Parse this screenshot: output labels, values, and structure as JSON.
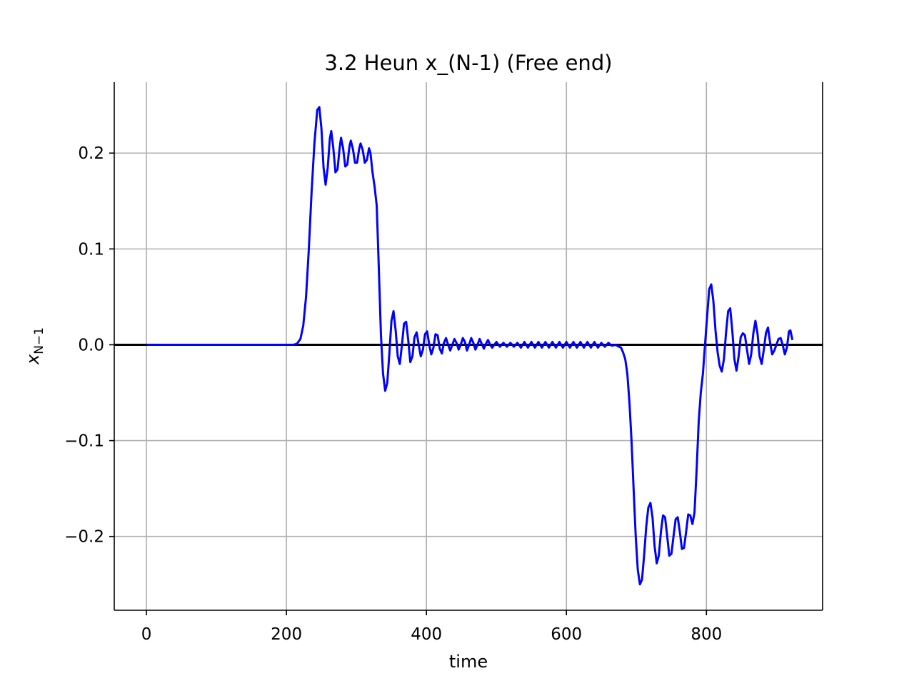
{
  "chart_data": {
    "type": "line",
    "title": "3.2 Heun x_(N-1) (Free end)",
    "xlabel": "time",
    "ylabel": "x",
    "ylabel_subscript": "N−1",
    "xlim": [
      -46,
      966
    ],
    "ylim": [
      -0.277,
      0.274
    ],
    "xticks": [
      0,
      200,
      400,
      600,
      800
    ],
    "xtick_labels": [
      "0",
      "200",
      "400",
      "600",
      "800"
    ],
    "yticks": [
      -0.2,
      -0.1,
      0.0,
      0.1,
      0.2
    ],
    "ytick_labels": [
      "−0.2",
      "−0.1",
      "0.0",
      "0.1",
      "0.2"
    ],
    "grid": true,
    "reference_line": {
      "y": 0.0,
      "color": "#000000"
    },
    "series": [
      {
        "color": "#0000ff",
        "points": [
          [
            0,
            0.0
          ],
          [
            50,
            0.0
          ],
          [
            100,
            0.0
          ],
          [
            150,
            0.0
          ],
          [
            200,
            0.0
          ],
          [
            210,
            0.0
          ],
          [
            215,
            0.001
          ],
          [
            220,
            0.006
          ],
          [
            224,
            0.02
          ],
          [
            228,
            0.05
          ],
          [
            232,
            0.1
          ],
          [
            236,
            0.16
          ],
          [
            240,
            0.21
          ],
          [
            244,
            0.245
          ],
          [
            247,
            0.248
          ],
          [
            250,
            0.225
          ],
          [
            253,
            0.185
          ],
          [
            256,
            0.167
          ],
          [
            259,
            0.185
          ],
          [
            262,
            0.215
          ],
          [
            264,
            0.223
          ],
          [
            267,
            0.205
          ],
          [
            270,
            0.18
          ],
          [
            273,
            0.183
          ],
          [
            276,
            0.205
          ],
          [
            278,
            0.216
          ],
          [
            281,
            0.205
          ],
          [
            284,
            0.186
          ],
          [
            287,
            0.188
          ],
          [
            290,
            0.207
          ],
          [
            292,
            0.213
          ],
          [
            295,
            0.204
          ],
          [
            298,
            0.19
          ],
          [
            301,
            0.19
          ],
          [
            304,
            0.205
          ],
          [
            306,
            0.21
          ],
          [
            309,
            0.203
          ],
          [
            312,
            0.19
          ],
          [
            315,
            0.193
          ],
          [
            318,
            0.205
          ],
          [
            320,
            0.2
          ],
          [
            323,
            0.18
          ],
          [
            326,
            0.165
          ],
          [
            329,
            0.145
          ],
          [
            332,
            0.08
          ],
          [
            335,
            0.01
          ],
          [
            338,
            -0.03
          ],
          [
            341,
            -0.048
          ],
          [
            344,
            -0.04
          ],
          [
            347,
            -0.01
          ],
          [
            350,
            0.025
          ],
          [
            353,
            0.035
          ],
          [
            356,
            0.015
          ],
          [
            359,
            -0.012
          ],
          [
            362,
            -0.02
          ],
          [
            365,
            0.0
          ],
          [
            368,
            0.022
          ],
          [
            371,
            0.024
          ],
          [
            374,
            0.005
          ],
          [
            377,
            -0.018
          ],
          [
            380,
            -0.012
          ],
          [
            383,
            0.008
          ],
          [
            386,
            0.013
          ],
          [
            389,
            0.0
          ],
          [
            392,
            -0.012
          ],
          [
            395,
            -0.005
          ],
          [
            398,
            0.011
          ],
          [
            401,
            0.014
          ],
          [
            404,
            0.0
          ],
          [
            407,
            -0.01
          ],
          [
            410,
            -0.003
          ],
          [
            413,
            0.011
          ],
          [
            416,
            0.01
          ],
          [
            419,
            -0.004
          ],
          [
            422,
            -0.009
          ],
          [
            425,
            0.002
          ],
          [
            428,
            0.007
          ],
          [
            431,
            0.0
          ],
          [
            434,
            -0.006
          ],
          [
            437,
            0.0
          ],
          [
            440,
            0.006
          ],
          [
            443,
            0.002
          ],
          [
            446,
            -0.005
          ],
          [
            449,
            0.0
          ],
          [
            452,
            0.007
          ],
          [
            455,
            0.003
          ],
          [
            458,
            -0.006
          ],
          [
            461,
            0.0
          ],
          [
            464,
            0.007
          ],
          [
            467,
            0.002
          ],
          [
            470,
            -0.005
          ],
          [
            473,
            0.0
          ],
          [
            476,
            0.006
          ],
          [
            479,
            0.001
          ],
          [
            482,
            -0.004
          ],
          [
            485,
            0.001
          ],
          [
            488,
            0.005
          ],
          [
            491,
            0.0
          ],
          [
            494,
            -0.003
          ],
          [
            497,
            0.0
          ],
          [
            500,
            0.003
          ],
          [
            505,
            -0.002
          ],
          [
            510,
            0.002
          ],
          [
            515,
            -0.002
          ],
          [
            520,
            0.002
          ],
          [
            525,
            -0.002
          ],
          [
            530,
            0.002
          ],
          [
            535,
            -0.003
          ],
          [
            540,
            0.003
          ],
          [
            545,
            -0.003
          ],
          [
            550,
            0.003
          ],
          [
            555,
            -0.003
          ],
          [
            560,
            0.003
          ],
          [
            565,
            -0.003
          ],
          [
            570,
            0.003
          ],
          [
            575,
            -0.003
          ],
          [
            580,
            0.003
          ],
          [
            585,
            -0.003
          ],
          [
            590,
            0.003
          ],
          [
            595,
            -0.003
          ],
          [
            600,
            0.003
          ],
          [
            605,
            -0.003
          ],
          [
            610,
            0.003
          ],
          [
            615,
            -0.003
          ],
          [
            620,
            0.003
          ],
          [
            625,
            -0.003
          ],
          [
            630,
            0.003
          ],
          [
            635,
            -0.003
          ],
          [
            640,
            0.003
          ],
          [
            645,
            -0.003
          ],
          [
            650,
            0.002
          ],
          [
            655,
            -0.002
          ],
          [
            660,
            0.002
          ],
          [
            665,
            -0.001
          ],
          [
            670,
            0.0
          ],
          [
            675,
            -0.002
          ],
          [
            678,
            -0.003
          ],
          [
            681,
            -0.008
          ],
          [
            684,
            -0.015
          ],
          [
            687,
            -0.03
          ],
          [
            690,
            -0.06
          ],
          [
            693,
            -0.1
          ],
          [
            696,
            -0.15
          ],
          [
            699,
            -0.2
          ],
          [
            702,
            -0.235
          ],
          [
            705,
            -0.25
          ],
          [
            708,
            -0.245
          ],
          [
            711,
            -0.22
          ],
          [
            714,
            -0.19
          ],
          [
            717,
            -0.17
          ],
          [
            720,
            -0.165
          ],
          [
            723,
            -0.18
          ],
          [
            726,
            -0.21
          ],
          [
            729,
            -0.228
          ],
          [
            732,
            -0.22
          ],
          [
            735,
            -0.195
          ],
          [
            738,
            -0.178
          ],
          [
            741,
            -0.18
          ],
          [
            744,
            -0.2
          ],
          [
            747,
            -0.22
          ],
          [
            750,
            -0.218
          ],
          [
            753,
            -0.2
          ],
          [
            756,
            -0.182
          ],
          [
            759,
            -0.18
          ],
          [
            762,
            -0.195
          ],
          [
            765,
            -0.213
          ],
          [
            768,
            -0.212
          ],
          [
            771,
            -0.195
          ],
          [
            774,
            -0.177
          ],
          [
            777,
            -0.178
          ],
          [
            780,
            -0.187
          ],
          [
            783,
            -0.175
          ],
          [
            786,
            -0.13
          ],
          [
            789,
            -0.08
          ],
          [
            792,
            -0.05
          ],
          [
            795,
            -0.03
          ],
          [
            798,
            0.0
          ],
          [
            801,
            0.03
          ],
          [
            804,
            0.058
          ],
          [
            807,
            0.063
          ],
          [
            810,
            0.045
          ],
          [
            813,
            0.015
          ],
          [
            816,
            -0.008
          ],
          [
            819,
            -0.022
          ],
          [
            822,
            -0.028
          ],
          [
            825,
            -0.015
          ],
          [
            828,
            0.012
          ],
          [
            831,
            0.035
          ],
          [
            834,
            0.038
          ],
          [
            837,
            0.015
          ],
          [
            840,
            -0.015
          ],
          [
            843,
            -0.027
          ],
          [
            846,
            -0.012
          ],
          [
            849,
            0.008
          ],
          [
            852,
            0.012
          ],
          [
            855,
            0.01
          ],
          [
            858,
            -0.005
          ],
          [
            861,
            -0.02
          ],
          [
            864,
            -0.01
          ],
          [
            867,
            0.012
          ],
          [
            870,
            0.025
          ],
          [
            873,
            0.012
          ],
          [
            876,
            -0.012
          ],
          [
            879,
            -0.02
          ],
          [
            882,
            -0.005
          ],
          [
            885,
            0.012
          ],
          [
            888,
            0.018
          ],
          [
            891,
            0.002
          ],
          [
            894,
            -0.01
          ],
          [
            897,
            -0.006
          ],
          [
            900,
            0.0
          ],
          [
            903,
            0.006
          ],
          [
            906,
            0.007
          ],
          [
            909,
            0.0
          ],
          [
            912,
            -0.01
          ],
          [
            915,
            -0.003
          ],
          [
            918,
            0.014
          ],
          [
            920,
            0.015
          ],
          [
            923,
            0.005
          ]
        ]
      }
    ]
  }
}
